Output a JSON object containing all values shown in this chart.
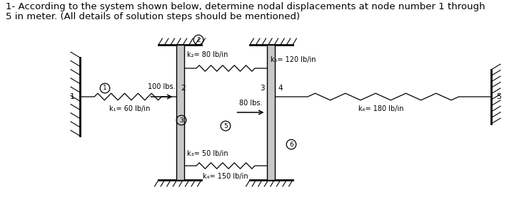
{
  "title_line1": "1- According to the system shown below, determine nodal displacements at node number 1 through",
  "title_line2": "5 in meter. (All details of solution steps should be mentioned)",
  "title_fontsize": 9.5,
  "title_color": "#000000",
  "bg_color": "#ffffff",
  "spring_labels": {
    "k1": "k₁= 60 lb/in",
    "k2": "k₂= 80 lb/in",
    "k3": "k₃= 50 lb/in",
    "k4": "k₄= 150 lb/in",
    "k5": "k₅= 120 lb/in",
    "k6": "k₆= 180 lb/in"
  },
  "force_labels": {
    "f1": "100 lbs.",
    "f2": "80 lbs."
  }
}
